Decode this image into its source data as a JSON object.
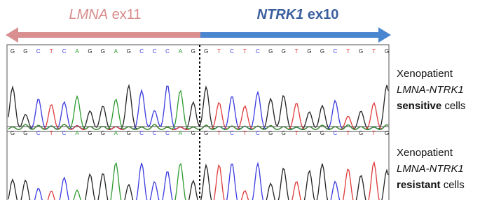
{
  "header": {
    "left_gene": "LMNA",
    "left_exon": "ex11",
    "right_gene": "NTRK1",
    "right_exon": "ex10"
  },
  "panels": [
    {
      "bases": [
        "G",
        "G",
        "C",
        "T",
        "C",
        "A",
        "G",
        "G",
        "A",
        "G",
        "C",
        "C",
        "C",
        "A",
        "G",
        "G",
        "T",
        "C",
        "T",
        "C",
        "G",
        "G",
        "T",
        "G",
        "G",
        "C",
        "T",
        "G",
        "T",
        "G"
      ],
      "label_line1": "Xenopatient",
      "label_line2": "LMNA-NTRK1",
      "status": "sensitive",
      "status_suffix": "cells"
    },
    {
      "bases": [
        "G",
        "G",
        "C",
        "T",
        "C",
        "A",
        "G",
        "G",
        "A",
        "G",
        "C",
        "C",
        "C",
        "A",
        "G",
        "G",
        "T",
        "C",
        "T",
        "C",
        "G",
        "G",
        "T",
        "G",
        "G",
        "C",
        "T",
        "G",
        "T",
        "G"
      ],
      "label_line1": "Xenopatient",
      "label_line2": "LMNA-NTRK1",
      "status": "resistant",
      "status_suffix": "cells"
    }
  ]
}
